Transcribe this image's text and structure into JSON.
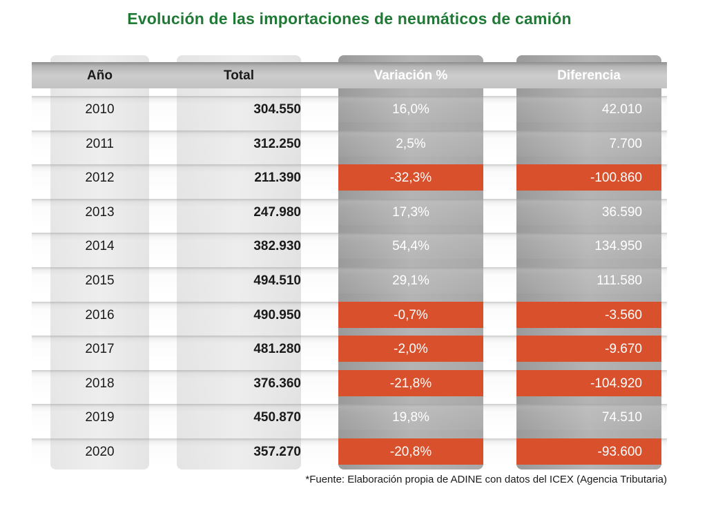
{
  "title": "Evolución de las importaciones de neumáticos de camión",
  "headers": {
    "year": "Año",
    "total": "Total",
    "variation": "Variación %",
    "difference": "Diferencia"
  },
  "rows": [
    {
      "year": "2010",
      "total": "304.550",
      "variation": "16,0%",
      "difference": "42.010",
      "negative": false
    },
    {
      "year": "2011",
      "total": "312.250",
      "variation": "2,5%",
      "difference": "7.700",
      "negative": false
    },
    {
      "year": "2012",
      "total": "211.390",
      "variation": "-32,3%",
      "difference": "-100.860",
      "negative": true
    },
    {
      "year": "2013",
      "total": "247.980",
      "variation": "17,3%",
      "difference": "36.590",
      "negative": false
    },
    {
      "year": "2014",
      "total": "382.930",
      "variation": "54,4%",
      "difference": "134.950",
      "negative": false
    },
    {
      "year": "2015",
      "total": "494.510",
      "variation": "29,1%",
      "difference": "111.580",
      "negative": false
    },
    {
      "year": "2016",
      "total": "490.950",
      "variation": "-0,7%",
      "difference": "-3.560",
      "negative": true
    },
    {
      "year": "2017",
      "total": "481.280",
      "variation": "-2,0%",
      "difference": "-9.670",
      "negative": true
    },
    {
      "year": "2018",
      "total": "376.360",
      "variation": "-21,8%",
      "difference": "-104.920",
      "negative": true
    },
    {
      "year": "2019",
      "total": "450.870",
      "variation": "19,8%",
      "difference": "74.510",
      "negative": false
    },
    {
      "year": "2020",
      "total": "357.270",
      "variation": "-20,8%",
      "difference": "-93.600",
      "negative": true
    }
  ],
  "footnote": "*Fuente: Elaboración propia de ADINE con datos del ICEX (Agencia Tributaria)",
  "colors": {
    "title": "#1f7a35",
    "negative": "#d8502c"
  }
}
